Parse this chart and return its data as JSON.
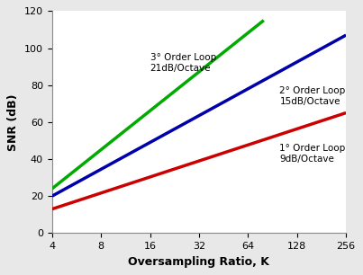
{
  "title": "",
  "xlabel": "Oversampling Ratio, K",
  "ylabel": "SNR (dB)",
  "xlim_log": [
    4,
    256
  ],
  "xticks": [
    4,
    8,
    16,
    32,
    64,
    128,
    256
  ],
  "ylim": [
    0,
    120
  ],
  "yticks": [
    0,
    20,
    40,
    60,
    80,
    100,
    120
  ],
  "lines": [
    {
      "order": 1,
      "label1": "1° Order Loop",
      "label2": "9dB/Octave",
      "color": "#cc0000",
      "x_start": 4,
      "x_end": 256,
      "y_start": 13,
      "y_end": 65,
      "ann_x": 100,
      "ann_y": 43,
      "ann_ha": "left"
    },
    {
      "order": 2,
      "label1": "2° Order Loop",
      "label2": "15dB/Octave",
      "color": "#0000aa",
      "x_start": 4,
      "x_end": 256,
      "y_start": 20,
      "y_end": 107,
      "ann_x": 100,
      "ann_y": 74,
      "ann_ha": "left"
    },
    {
      "order": 3,
      "label1": "3° Order Loop",
      "label2": "21dB/Octave",
      "color": "#00aa00",
      "x_start": 4,
      "x_end": 80,
      "y_start": 24,
      "y_end": 115,
      "ann_x": 16,
      "ann_y": 92,
      "ann_ha": "left"
    }
  ],
  "background_color": "#e8e8e8",
  "plot_bg": "#ffffff",
  "line_width": 2.5,
  "font_color": "#000000",
  "annotation_fontsize": 7.5,
  "axis_label_fontsize": 9.0,
  "tick_fontsize": 8.0
}
